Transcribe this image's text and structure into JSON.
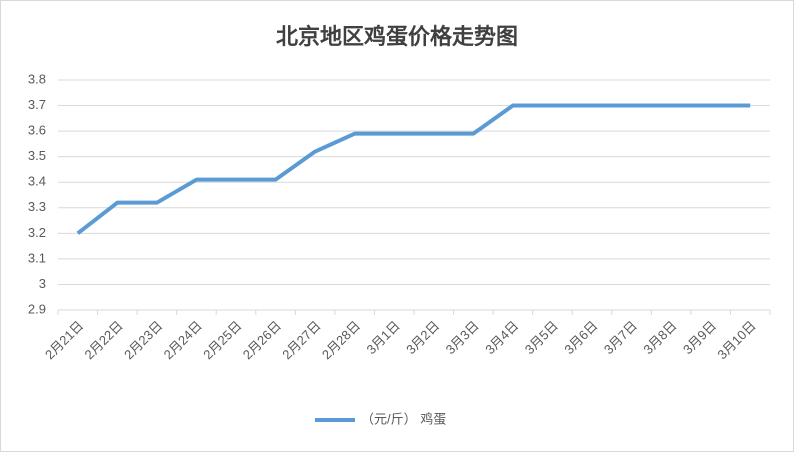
{
  "chart_data": {
    "type": "line",
    "title": "北京地区鸡蛋价格走势图",
    "categories": [
      "2月21日",
      "2月22日",
      "2月23日",
      "2月24日",
      "2月25日",
      "2月26日",
      "2月27日",
      "2月28日",
      "3月1日",
      "3月2日",
      "3月3日",
      "3月4日",
      "3月5日",
      "3月6日",
      "3月7日",
      "3月8日",
      "3月9日",
      "3月10日"
    ],
    "series": [
      {
        "name": "（元/斤） 鸡蛋",
        "color": "#5b9bd5",
        "values": [
          3.2,
          3.32,
          3.32,
          3.41,
          3.41,
          3.41,
          3.52,
          3.59,
          3.59,
          3.59,
          3.59,
          3.7,
          3.7,
          3.7,
          3.7,
          3.7,
          3.7,
          3.7
        ]
      }
    ],
    "ylim": [
      2.9,
      3.8
    ],
    "yticks": [
      2.9,
      3,
      3.1,
      3.2,
      3.3,
      3.4,
      3.5,
      3.6,
      3.7,
      3.8
    ],
    "grid": true,
    "legend": "bottom"
  }
}
